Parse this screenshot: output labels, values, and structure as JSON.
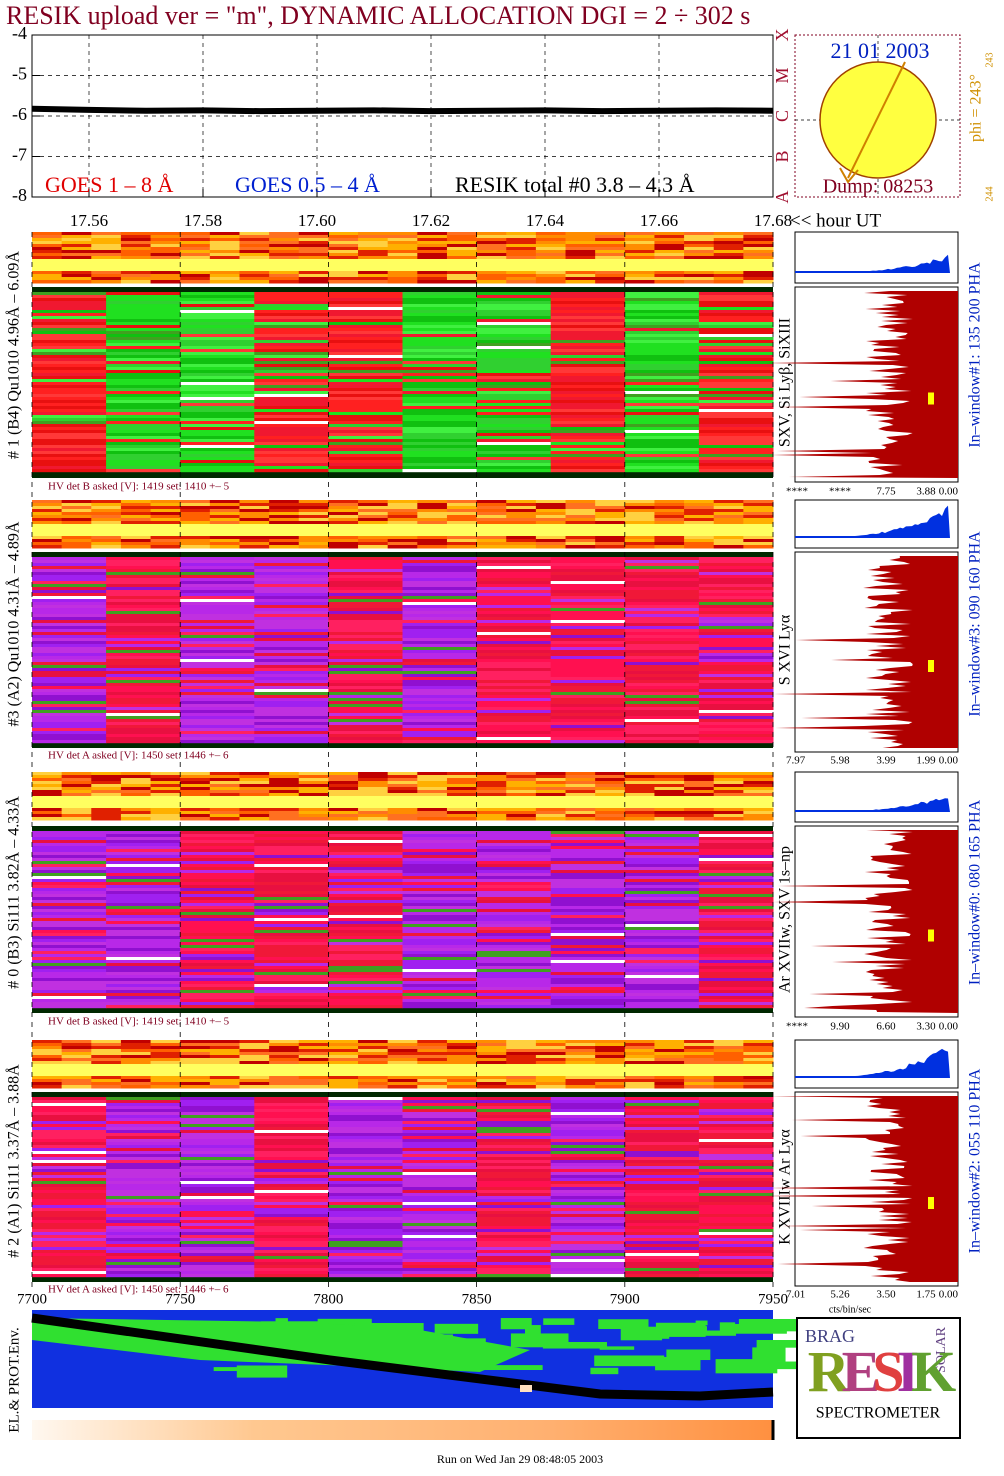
{
  "title": "RESIK upload ver = \"m\", DYNAMIC ALLOCATION  DGI =   2 ÷ 302 s",
  "chart_data": [
    {
      "type": "line",
      "xlim": [
        17.55,
        17.68
      ],
      "xticks": [
        17.56,
        17.58,
        {
          "value": 17.6,
          "label": "17.60"
        },
        17.62,
        17.64,
        17.66,
        17.68
      ],
      "xlabel": "<< hour UT",
      "ylim": [
        -8,
        -4
      ],
      "yticks": [
        -8,
        -7,
        -6,
        -5,
        -4
      ],
      "y2lim": [
        -8,
        -4
      ],
      "y2ticks": [
        {
          "value": -8,
          "label": "A"
        },
        {
          "value": -7,
          "label": "B"
        },
        {
          "value": -6,
          "label": "C"
        },
        {
          "value": -5,
          "label": "M"
        },
        {
          "value": -4,
          "label": "X"
        }
      ],
      "grid": true,
      "x": [
        17.55,
        17.56,
        17.57,
        17.58,
        17.59,
        17.6,
        17.61,
        17.62,
        17.63,
        17.64,
        17.65,
        17.66,
        17.67,
        17.68
      ],
      "series": [
        {
          "name": "GOES 1 – 8 Å",
          "color": "#e00000",
          "values": [
            null,
            null,
            null,
            null,
            null,
            null,
            null,
            null,
            null,
            null,
            null,
            null,
            null,
            null
          ]
        },
        {
          "name": "GOES 0.5 – 4 Å",
          "color": "#0020d0",
          "values": [
            null,
            null,
            null,
            null,
            null,
            null,
            null,
            null,
            null,
            null,
            null,
            null,
            null,
            null
          ]
        },
        {
          "name": "RESIK total #0  3.8 – 4.3 Å",
          "color": "#000000",
          "values": [
            -5.82,
            -5.85,
            -5.87,
            -5.86,
            -5.88,
            -5.87,
            -5.86,
            -5.88,
            -5.87,
            -5.86,
            -5.88,
            -5.87,
            -5.86,
            -5.87
          ]
        }
      ]
    },
    {
      "type": "heatmap",
      "ylabel": "EL.& PROT.Env.",
      "xlim": [
        7700,
        7950
      ],
      "xticks": [
        7700,
        7750,
        7800,
        7850,
        7900,
        7950
      ],
      "grid": true
    }
  ],
  "sun": {
    "date": "21 01 2003",
    "dump": "Dump: 08253",
    "phi": "phi = 243°",
    "phi_sup": "243",
    "phi_low": "244"
  },
  "detectors": [
    {
      "label": "# 1 (B4) Qu1010 4.96Å – 6.09Å",
      "hv": "HV det B asked [V]:  1419 set:  1410 +–    5",
      "lines": "SXV, Si Lyβ, SiXIII",
      "window": "In–window#1:  135 200 PHA",
      "hist_ticks": [
        "****",
        "****",
        "7.75",
        "3.88",
        "0.00"
      ]
    },
    {
      "label": "#3 (A2) Qu1010  4.31Å – 4.89Å",
      "hv": "HV det A asked [V]:  1450 set:  1446 +–    6",
      "lines": "S XVI Lyα",
      "window": "In–window#3:  090 160 PHA",
      "hist_ticks": [
        "7.97",
        "5.98",
        "3.99",
        "1.99",
        "0.00"
      ]
    },
    {
      "label": "# 0 (B3) Si111  3.82Å – 4.33Å",
      "hv": "HV det B asked [V]:  1419 set:  1410 +–    5",
      "lines": "Ar XVIIw,  SXV 1s–np",
      "window": "In–window#0:  080 165 PHA",
      "hist_ticks": [
        "****",
        "9.90",
        "6.60",
        "3.30",
        "0.00"
      ]
    },
    {
      "label": "# 2 (A1) Si111  3.37Å – 3.88Å",
      "hv": "HV det A asked [V]:  1450 set:  1446 +–    6",
      "lines": "K XVIIIw  Ar Lyα",
      "window": "In–window#2:  055 110 PHA",
      "hist_ticks": [
        "7.01",
        "5.26",
        "3.50",
        "1.75",
        "0.00"
      ]
    }
  ],
  "hist_xlabel": "cts/bin/sec",
  "logo": {
    "brag": "BRAG",
    "letters": "RESIK",
    "solar": "SOLAR",
    "caption": "SPECTROMETER"
  },
  "footer": "Run on Wed Jan 29 08:48:05 2003"
}
